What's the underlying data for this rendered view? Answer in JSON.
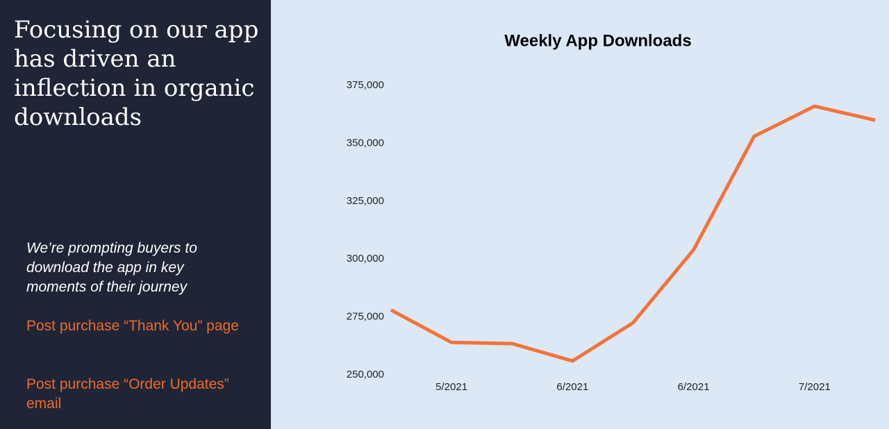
{
  "left": {
    "heading": "Focusing on our app has driven an inflection in organic downloads",
    "body": "We’re prompting buyers to download the app in key moments of their journey",
    "items": [
      "Post purchase “Thank You” page",
      "Post purchase “Order Updates” email"
    ]
  },
  "chart_data": {
    "type": "line",
    "title": "Weekly App Downloads",
    "categories": [
      null,
      "5/2021",
      null,
      "6/2021",
      null,
      "6/2021",
      null,
      "7/2021",
      null
    ],
    "values": [
      278000,
      264000,
      263500,
      256000,
      272500,
      304000,
      353000,
      366000,
      360000
    ],
    "color": "#f37339",
    "ylim": [
      250000,
      375000
    ],
    "yticks": [
      {
        "value": 250000,
        "label": "250,000"
      },
      {
        "value": 275000,
        "label": "275,000"
      },
      {
        "value": 300000,
        "label": "300,000"
      },
      {
        "value": 325000,
        "label": "325,000"
      },
      {
        "value": 350000,
        "label": "350,000"
      },
      {
        "value": 375000,
        "label": "375,000"
      }
    ],
    "grid": false
  }
}
